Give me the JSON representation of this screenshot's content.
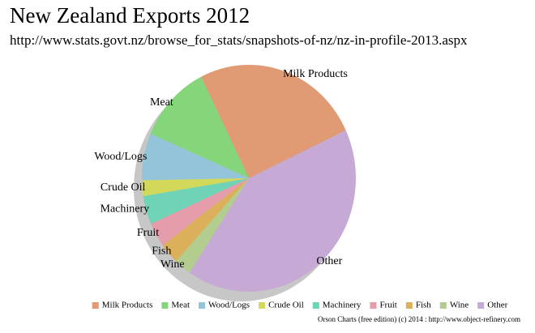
{
  "chart_data": {
    "type": "pie",
    "title": "New Zealand Exports 2012",
    "subtitle": "http://www.stats.govt.nz/browse_for_stats/snapshots-of-nz/nz-in-profile-2013.aspx",
    "categories": [
      "Milk Products",
      "Meat",
      "Wood/Logs",
      "Crude Oil",
      "Machinery",
      "Fruit",
      "Fish",
      "Wine",
      "Other"
    ],
    "values": [
      11625,
      5114,
      3060,
      1023,
      1865,
      1587,
      1367,
      1177,
      18870
    ],
    "colors": [
      "#e09a74",
      "#85d67a",
      "#93c4da",
      "#d2d85a",
      "#6fd3b5",
      "#e59cab",
      "#dcb05a",
      "#b2cd8d",
      "#c6a9d5"
    ],
    "legend": "bottom",
    "credit": "Orson Charts (free edition) (c) 2014 : http://www.object-refinery.com"
  }
}
